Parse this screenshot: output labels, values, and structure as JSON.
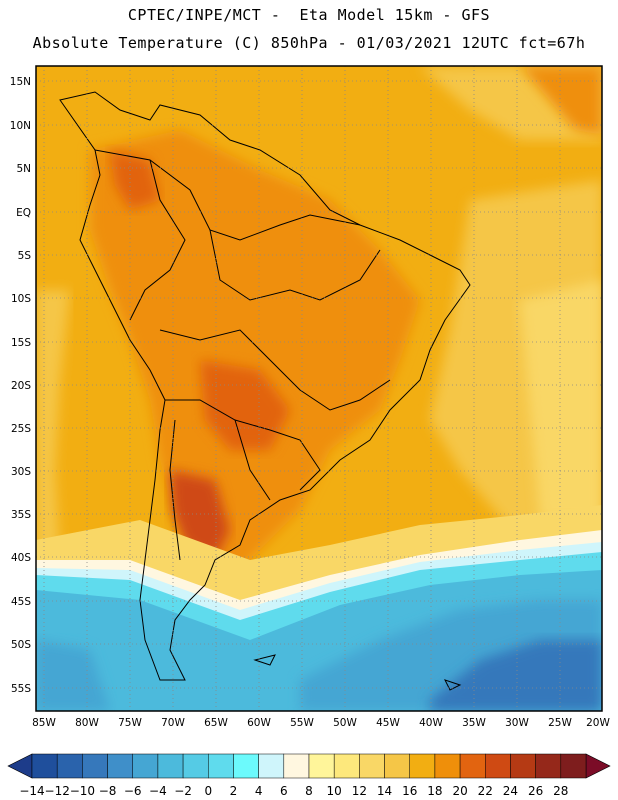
{
  "header": {
    "title_line1": "CPTEC/INPE/MCT -  Eta Model 15km - GFS",
    "title_line2": "Absolute Temperature (C) 850hPa - 01/03/2021 12UTC fct=67h"
  },
  "map": {
    "lat_ticks": [
      "15N",
      "10N",
      "5N",
      "EQ",
      "5S",
      "10S",
      "15S",
      "20S",
      "25S",
      "30S",
      "35S",
      "40S",
      "45S",
      "50S",
      "55S"
    ],
    "lon_ticks": [
      "85W",
      "80W",
      "75W",
      "70W",
      "65W",
      "60W",
      "55W",
      "50W",
      "45W",
      "40W",
      "35W",
      "30W",
      "25W",
      "20W"
    ],
    "grid": "dotted",
    "border_color": "#000000"
  },
  "colorbar": {
    "labels": [
      "-14",
      "-12",
      "-10",
      "-8",
      "-6",
      "-4",
      "-2",
      "0",
      "2",
      "4",
      "6",
      "8",
      "10",
      "12",
      "14",
      "16",
      "18",
      "20",
      "22",
      "24",
      "26",
      "28"
    ],
    "colors": [
      "#1f4f9c",
      "#2a63ac",
      "#3678bb",
      "#3f8fc9",
      "#45a6d3",
      "#4cbadc",
      "#55cbe5",
      "#5fdbed",
      "#6cfafc",
      "#cff5fb",
      "#fff7e0",
      "#fff59a",
      "#fde87c",
      "#f9d766",
      "#f5c647",
      "#f2ae12",
      "#ef8f0a",
      "#e26410",
      "#cf4a13",
      "#b53a14",
      "#95281a",
      "#7e1d1d"
    ],
    "left_arrow_color": "#1d3c8a",
    "right_arrow_color": "#7b0c27"
  }
}
